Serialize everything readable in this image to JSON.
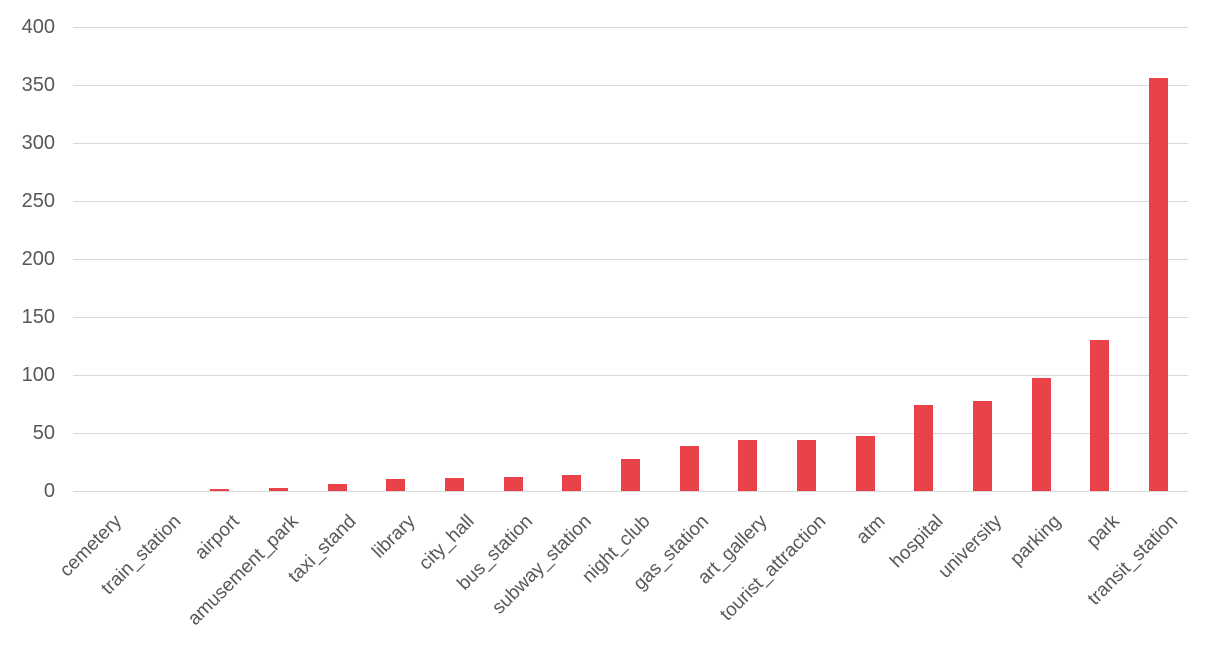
{
  "chart_data": {
    "type": "bar",
    "title": "",
    "xlabel": "",
    "ylabel": "",
    "categories": [
      "cemetery",
      "train_station",
      "airport",
      "amusement_park",
      "taxi_stand",
      "library",
      "city_hall",
      "bus_station",
      "subway_station",
      "night_club",
      "gas_station",
      "art_gallery",
      "tourist_attraction",
      "atm",
      "hospital",
      "university",
      "parking",
      "park",
      "transit_station"
    ],
    "values": [
      0,
      0,
      2,
      3,
      6,
      10,
      11,
      12,
      14,
      28,
      39,
      44,
      44,
      47,
      74,
      78,
      97,
      130,
      356
    ],
    "ylim": [
      0,
      400
    ],
    "yticks": [
      0,
      50,
      100,
      150,
      200,
      250,
      300,
      350,
      400
    ],
    "grid": true,
    "legend": "none",
    "colors": {
      "bar": "#e94349",
      "gridline": "#d9d9d9",
      "tick_label": "#58585a",
      "background": "#ffffff"
    }
  }
}
